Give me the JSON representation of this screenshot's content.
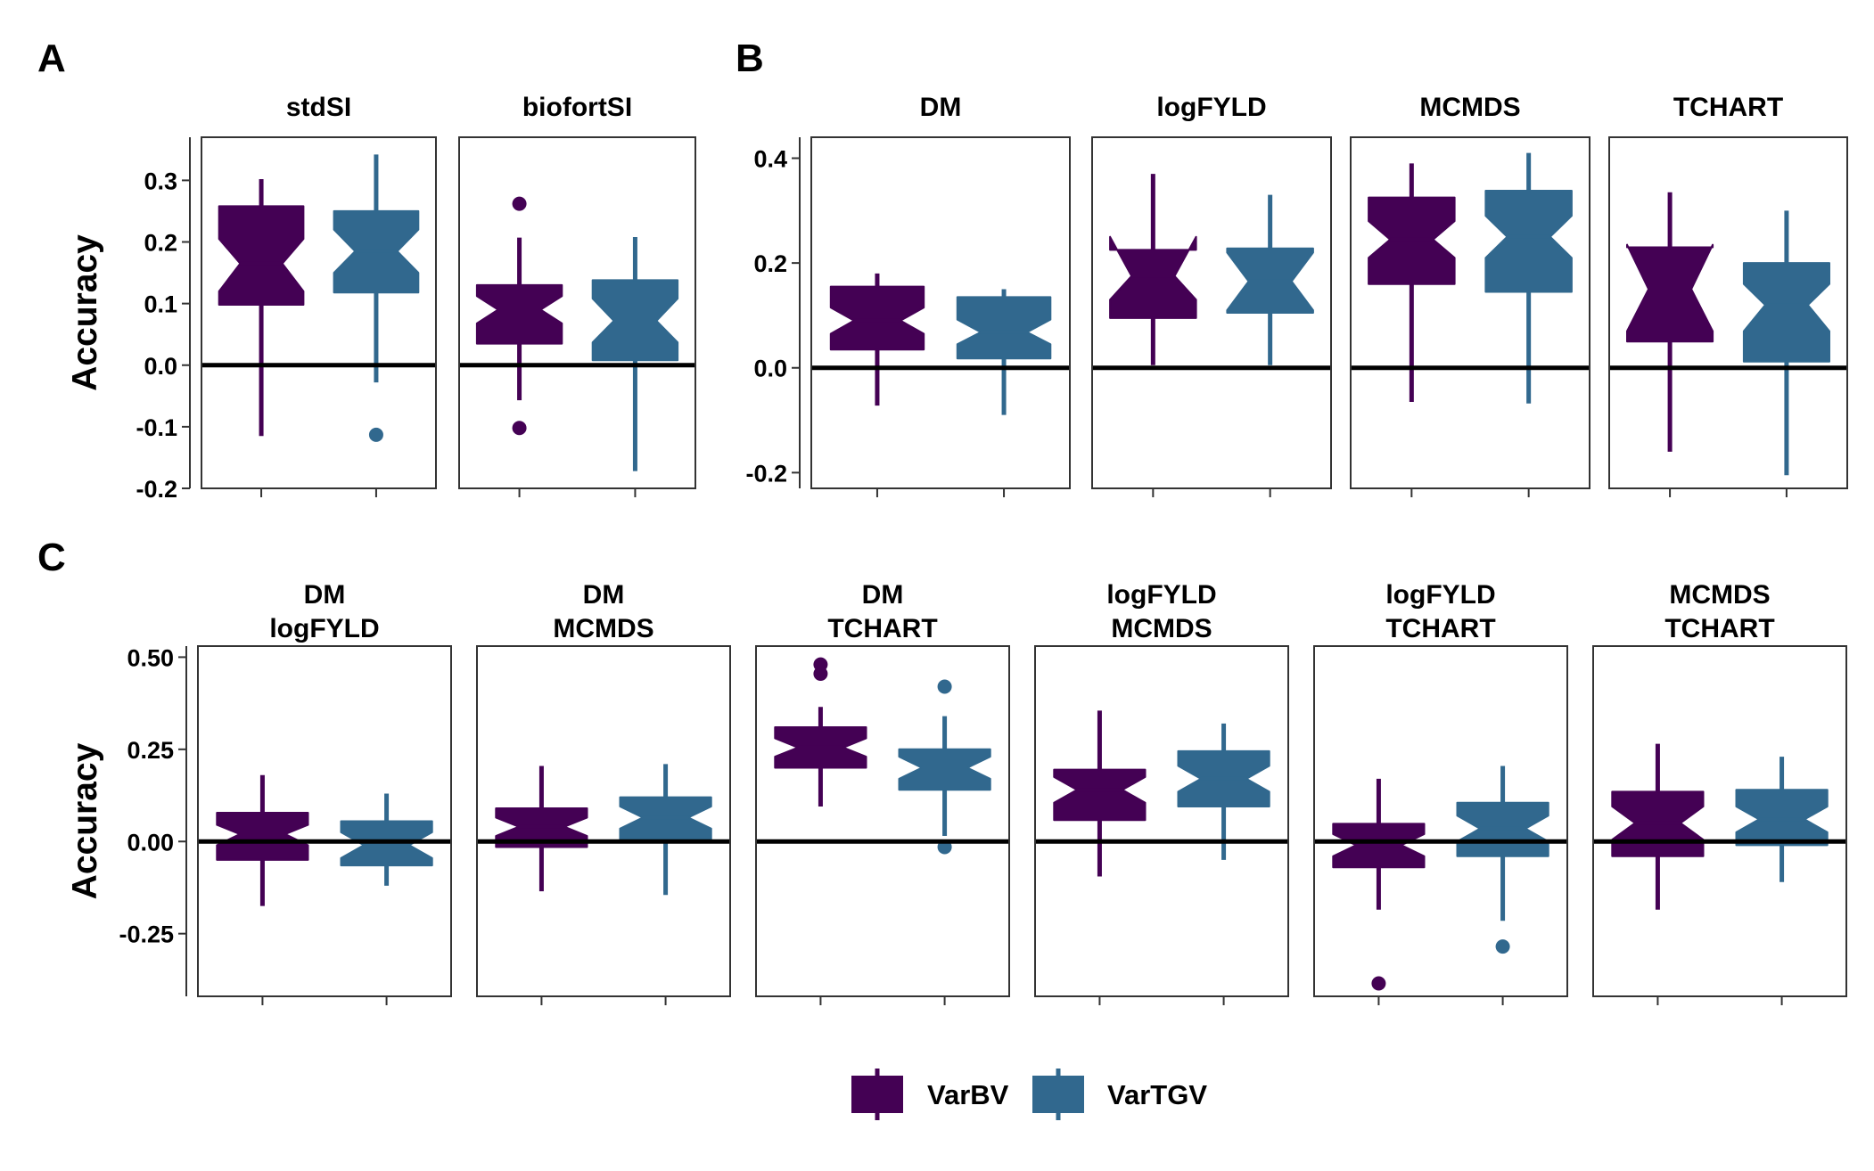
{
  "colors": {
    "VarBV": "#440154",
    "VarTGV": "#31688e",
    "zero_line": "#000000",
    "frame": "#333333"
  },
  "legend": {
    "position": "bottom",
    "items": [
      "VarBV",
      "VarTGV"
    ]
  },
  "chart_data": [
    {
      "type": "boxplot",
      "panel_label": "A",
      "ylabel": "Accuracy",
      "ylim": [
        -0.2,
        0.37
      ],
      "yticks": [
        -0.2,
        -0.1,
        0.0,
        0.1,
        0.2,
        0.3
      ],
      "ytick_labels": [
        "-0.2",
        "-0.1",
        "0.0",
        "0.1",
        "0.2",
        "0.3"
      ],
      "reference_line": 0,
      "facets": [
        {
          "label": [
            "stdSI"
          ],
          "boxes": [
            {
              "group": "VarBV",
              "min": -0.115,
              "q1": 0.098,
              "median": 0.165,
              "q3": 0.258,
              "max": 0.302,
              "notch": [
                0.12,
                0.205
              ],
              "outliers": []
            },
            {
              "group": "VarTGV",
              "min": -0.028,
              "q1": 0.118,
              "median": 0.185,
              "q3": 0.25,
              "max": 0.342,
              "notch": [
                0.15,
                0.22
              ],
              "outliers": [
                -0.113
              ]
            }
          ]
        },
        {
          "label": [
            "biofortSI"
          ],
          "boxes": [
            {
              "group": "VarBV",
              "min": -0.057,
              "q1": 0.035,
              "median": 0.09,
              "q3": 0.13,
              "max": 0.207,
              "notch": [
                0.068,
                0.112
              ],
              "outliers": [
                0.262,
                -0.102
              ]
            },
            {
              "group": "VarTGV",
              "min": -0.172,
              "q1": 0.008,
              "median": 0.072,
              "q3": 0.138,
              "max": 0.208,
              "notch": [
                0.037,
                0.108
              ],
              "outliers": []
            }
          ]
        }
      ]
    },
    {
      "type": "boxplot",
      "panel_label": "B",
      "ylabel": "",
      "ylim": [
        -0.23,
        0.44
      ],
      "yticks": [
        -0.2,
        0.0,
        0.2,
        0.4
      ],
      "ytick_labels": [
        "-0.2",
        "0.0",
        "0.2",
        "0.4"
      ],
      "reference_line": 0,
      "facets": [
        {
          "label": [
            "DM"
          ],
          "boxes": [
            {
              "group": "VarBV",
              "min": -0.072,
              "q1": 0.035,
              "median": 0.09,
              "q3": 0.155,
              "max": 0.18,
              "notch": [
                0.065,
                0.115
              ],
              "outliers": []
            },
            {
              "group": "VarTGV",
              "min": -0.09,
              "q1": 0.018,
              "median": 0.068,
              "q3": 0.135,
              "max": 0.15,
              "notch": [
                0.045,
                0.092
              ],
              "outliers": []
            }
          ]
        },
        {
          "label": [
            "logFYLD"
          ],
          "boxes": [
            {
              "group": "VarBV",
              "min": 0.005,
              "q1": 0.095,
              "median": 0.175,
              "q3": 0.225,
              "max": 0.37,
              "notch": [
                0.13,
                0.25
              ],
              "outliers": []
            },
            {
              "group": "VarTGV",
              "min": 0.005,
              "q1": 0.105,
              "median": 0.165,
              "q3": 0.228,
              "max": 0.33,
              "notch": [
                0.11,
                0.22
              ],
              "outliers": []
            }
          ]
        },
        {
          "label": [
            "MCMDS"
          ],
          "boxes": [
            {
              "group": "VarBV",
              "min": -0.065,
              "q1": 0.16,
              "median": 0.245,
              "q3": 0.325,
              "max": 0.39,
              "notch": [
                0.21,
                0.28
              ],
              "outliers": []
            },
            {
              "group": "VarTGV",
              "min": -0.068,
              "q1": 0.145,
              "median": 0.25,
              "q3": 0.338,
              "max": 0.41,
              "notch": [
                0.21,
                0.29
              ],
              "outliers": []
            }
          ]
        },
        {
          "label": [
            "TCHART"
          ],
          "boxes": [
            {
              "group": "VarBV",
              "min": -0.16,
              "q1": 0.05,
              "median": 0.15,
              "q3": 0.23,
              "max": 0.335,
              "notch": [
                0.07,
                0.235
              ],
              "outliers": []
            },
            {
              "group": "VarTGV",
              "min": -0.205,
              "q1": 0.012,
              "median": 0.12,
              "q3": 0.2,
              "max": 0.3,
              "notch": [
                0.07,
                0.16
              ],
              "outliers": []
            }
          ]
        }
      ]
    },
    {
      "type": "boxplot",
      "panel_label": "C",
      "ylabel": "Accuracy",
      "ylim": [
        -0.42,
        0.53
      ],
      "yticks": [
        -0.25,
        0.0,
        0.25,
        0.5
      ],
      "ytick_labels": [
        "-0.25",
        "0.00",
        "0.25",
        "0.50"
      ],
      "reference_line": 0,
      "facets": [
        {
          "label": [
            "DM",
            "logFYLD"
          ],
          "boxes": [
            {
              "group": "VarBV",
              "min": -0.175,
              "q1": -0.05,
              "median": 0.02,
              "q3": 0.078,
              "max": 0.18,
              "notch": [
                -0.01,
                0.045
              ],
              "outliers": []
            },
            {
              "group": "VarTGV",
              "min": -0.12,
              "q1": -0.065,
              "median": -0.01,
              "q3": 0.055,
              "max": 0.13,
              "notch": [
                -0.045,
                0.025
              ],
              "outliers": []
            }
          ]
        },
        {
          "label": [
            "DM",
            "MCMDS"
          ],
          "boxes": [
            {
              "group": "VarBV",
              "min": -0.135,
              "q1": -0.015,
              "median": 0.04,
              "q3": 0.09,
              "max": 0.205,
              "notch": [
                0.015,
                0.065
              ],
              "outliers": []
            },
            {
              "group": "VarTGV",
              "min": -0.145,
              "q1": 0.005,
              "median": 0.065,
              "q3": 0.12,
              "max": 0.21,
              "notch": [
                0.035,
                0.095
              ],
              "outliers": []
            }
          ]
        },
        {
          "label": [
            "DM",
            "TCHART"
          ],
          "boxes": [
            {
              "group": "VarBV",
              "min": 0.095,
              "q1": 0.2,
              "median": 0.255,
              "q3": 0.31,
              "max": 0.365,
              "notch": [
                0.23,
                0.28
              ],
              "outliers": [
                0.48,
                0.455
              ]
            },
            {
              "group": "VarTGV",
              "min": 0.015,
              "q1": 0.14,
              "median": 0.2,
              "q3": 0.25,
              "max": 0.34,
              "notch": [
                0.17,
                0.23
              ],
              "outliers": [
                0.42,
                -0.015
              ]
            }
          ]
        },
        {
          "label": [
            "logFYLD",
            "MCMDS"
          ],
          "boxes": [
            {
              "group": "VarBV",
              "min": -0.095,
              "q1": 0.058,
              "median": 0.14,
              "q3": 0.195,
              "max": 0.355,
              "notch": [
                0.105,
                0.175
              ],
              "outliers": []
            },
            {
              "group": "VarTGV",
              "min": -0.05,
              "q1": 0.095,
              "median": 0.17,
              "q3": 0.245,
              "max": 0.32,
              "notch": [
                0.135,
                0.205
              ],
              "outliers": []
            }
          ]
        },
        {
          "label": [
            "logFYLD",
            "TCHART"
          ],
          "boxes": [
            {
              "group": "VarBV",
              "min": -0.185,
              "q1": -0.07,
              "median": -0.01,
              "q3": 0.048,
              "max": 0.17,
              "notch": [
                -0.04,
                0.02
              ],
              "outliers": [
                -0.385
              ]
            },
            {
              "group": "VarTGV",
              "min": -0.215,
              "q1": -0.04,
              "median": 0.035,
              "q3": 0.105,
              "max": 0.205,
              "notch": [
                0.0,
                0.07
              ],
              "outliers": [
                -0.285
              ]
            }
          ]
        },
        {
          "label": [
            "MCMDS",
            "TCHART"
          ],
          "boxes": [
            {
              "group": "VarBV",
              "min": -0.185,
              "q1": -0.04,
              "median": 0.05,
              "q3": 0.135,
              "max": 0.265,
              "notch": [
                0.005,
                0.095
              ],
              "outliers": []
            },
            {
              "group": "VarTGV",
              "min": -0.11,
              "q1": -0.01,
              "median": 0.06,
              "q3": 0.14,
              "max": 0.23,
              "notch": [
                0.025,
                0.095
              ],
              "outliers": []
            }
          ]
        }
      ]
    }
  ]
}
